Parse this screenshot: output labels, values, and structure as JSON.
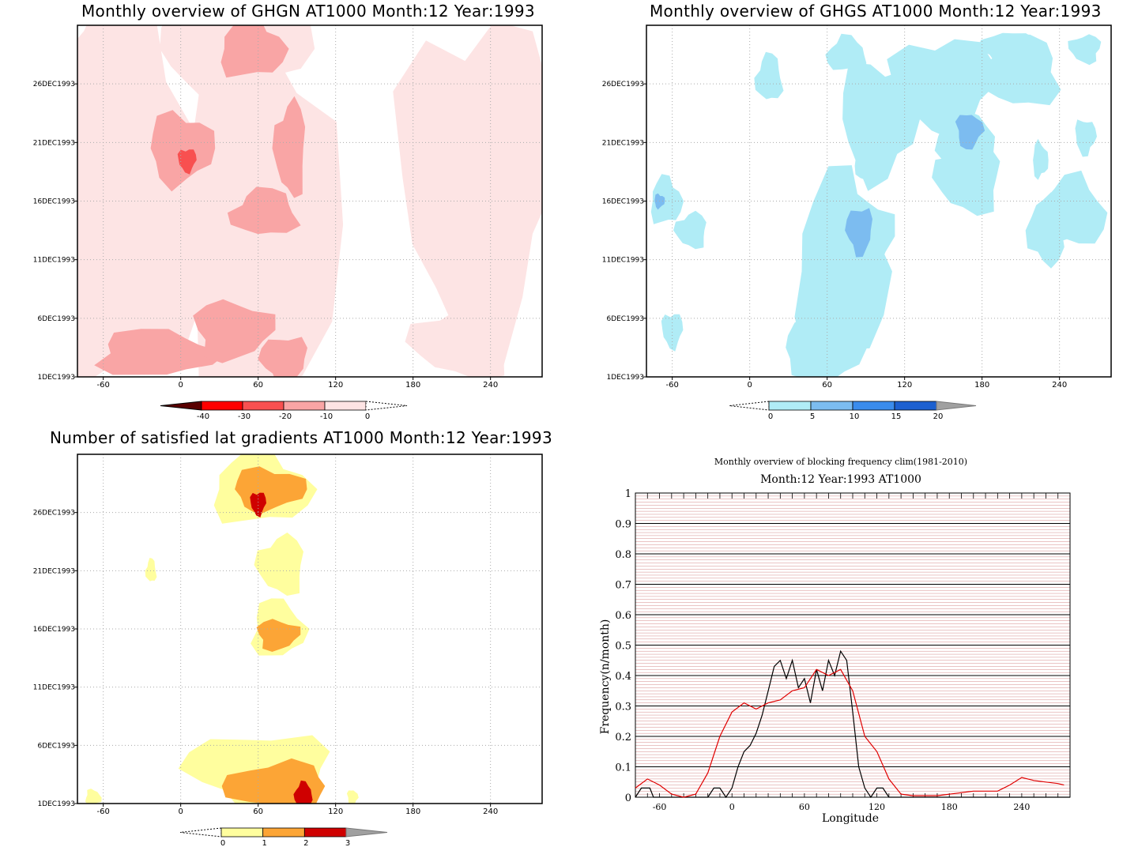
{
  "colors": {
    "reds": [
      "#5a0000",
      "#ff0000",
      "#f85050",
      "#f9a5a5",
      "#fde4e4"
    ],
    "blues": [
      "#b0ecf6",
      "#7cbcf0",
      "#3a8cec",
      "#1c60d0",
      "#a0a0a0"
    ],
    "yellows": [
      "#fffe9e",
      "#fca536",
      "#cf0000",
      "#a0a0a0"
    ],
    "line_black": "#000000",
    "line_red": "#e00000"
  },
  "chart_data": [
    {
      "type": "heatmap",
      "title": "Monthly overview of GHGN AT1000 Month:12 Year:1993",
      "x_ticks": [
        "-60",
        "0",
        "60",
        "120",
        "180",
        "240"
      ],
      "x_tick_values": [
        -60,
        0,
        60,
        120,
        180,
        240
      ],
      "y_ticks": [
        "1DEC1993",
        "6DEC1993",
        "11DEC1993",
        "16DEC1993",
        "21DEC1993",
        "26DEC1993"
      ],
      "y_tick_values": [
        1,
        6,
        11,
        16,
        21,
        26
      ],
      "xlim": [
        -80,
        280
      ],
      "ylim": [
        1,
        31
      ],
      "grid": true,
      "colorbar": {
        "labels": [
          "-40",
          "-30",
          "-20",
          "-10",
          "0"
        ],
        "values": [
          -40,
          -30,
          -20,
          -10,
          0
        ]
      },
      "features": [
        {
          "level": 3,
          "center": [
            55,
            29
          ],
          "radius": [
            25,
            2.5
          ]
        },
        {
          "level": 3,
          "center": [
            0,
            20.5
          ],
          "radius": [
            25,
            3
          ]
        },
        {
          "level": 2,
          "center": [
            5,
            19.5
          ],
          "radius": [
            7,
            1
          ]
        },
        {
          "level": 3,
          "center": [
            85,
            20.5
          ],
          "radius": [
            12,
            4
          ]
        },
        {
          "level": 3,
          "center": [
            65,
            15
          ],
          "radius": [
            25,
            2
          ]
        },
        {
          "level": 3,
          "center": [
            -20,
            3
          ],
          "radius": [
            45,
            2
          ]
        },
        {
          "level": 3,
          "center": [
            40,
            5
          ],
          "radius": [
            30,
            2.5
          ]
        },
        {
          "level": 3,
          "center": [
            80,
            2.5
          ],
          "radius": [
            18,
            2
          ]
        }
      ]
    },
    {
      "type": "heatmap",
      "title": "Monthly overview of GHGS AT1000 Month:12 Year:1993",
      "x_ticks": [
        "-60",
        "0",
        "60",
        "120",
        "180",
        "240"
      ],
      "x_tick_values": [
        -60,
        0,
        60,
        120,
        180,
        240
      ],
      "y_ticks": [
        "1DEC1993",
        "6DEC1993",
        "11DEC1993",
        "16DEC1993",
        "21DEC1993",
        "26DEC1993"
      ],
      "y_tick_values": [
        1,
        6,
        11,
        16,
        21,
        26
      ],
      "xlim": [
        -80,
        280
      ],
      "ylim": [
        1,
        31
      ],
      "grid": true,
      "colorbar": {
        "labels": [
          "0",
          "5",
          "10",
          "15",
          "20"
        ],
        "values": [
          0,
          5,
          10,
          15,
          20
        ]
      },
      "features": [
        {
          "level": 1,
          "center": [
            -65,
            16
          ],
          "radius": [
            12,
            2
          ]
        },
        {
          "level": 2,
          "center": [
            -70,
            16
          ],
          "radius": [
            4,
            0.6
          ]
        },
        {
          "level": 1,
          "center": [
            -60,
            5
          ],
          "radius": [
            8,
            1.5
          ]
        },
        {
          "level": 1,
          "center": [
            -45,
            13.5
          ],
          "radius": [
            12,
            1.5
          ]
        },
        {
          "level": 1,
          "center": [
            15,
            26.5
          ],
          "radius": [
            10,
            2
          ]
        },
        {
          "level": 1,
          "center": [
            60,
            3.5
          ],
          "radius": [
            25,
            3
          ]
        },
        {
          "level": 1,
          "center": [
            88,
            13
          ],
          "radius": [
            22,
            3.5
          ]
        },
        {
          "level": 2,
          "center": [
            85,
            13.5
          ],
          "radius": [
            10,
            2
          ]
        },
        {
          "level": 1,
          "center": [
            90,
            19
          ],
          "radius": [
            8,
            1.5
          ]
        },
        {
          "level": 1,
          "center": [
            75,
            28.5
          ],
          "radius": [
            15,
            1.5
          ]
        },
        {
          "level": 1,
          "center": [
            165,
            21.5
          ],
          "radius": [
            22,
            2.5
          ]
        },
        {
          "level": 2,
          "center": [
            170,
            22
          ],
          "radius": [
            10,
            1.5
          ]
        },
        {
          "level": 1,
          "center": [
            200,
            29
          ],
          "radius": [
            20,
            1.5
          ]
        },
        {
          "level": 1,
          "center": [
            230,
            13.5
          ],
          "radius": [
            14,
            3
          ]
        },
        {
          "level": 1,
          "center": [
            250,
            15
          ],
          "radius": [
            25,
            3
          ]
        },
        {
          "level": 1,
          "center": [
            225,
            19.5
          ],
          "radius": [
            6,
            1.5
          ]
        },
        {
          "level": 1,
          "center": [
            260,
            21.5
          ],
          "radius": [
            8,
            1.5
          ]
        },
        {
          "level": 1,
          "center": [
            260,
            29
          ],
          "radius": [
            12,
            1.2
          ]
        }
      ]
    },
    {
      "type": "heatmap",
      "title": "Number of satisfied lat gradients AT1000 Month:12 Year:1993",
      "x_ticks": [
        "-60",
        "0",
        "60",
        "120",
        "180",
        "240"
      ],
      "x_tick_values": [
        -60,
        0,
        60,
        120,
        180,
        240
      ],
      "y_ticks": [
        "1DEC1993",
        "6DEC1993",
        "11DEC1993",
        "16DEC1993",
        "21DEC1993",
        "26DEC1993"
      ],
      "y_tick_values": [
        1,
        6,
        11,
        16,
        21,
        26
      ],
      "xlim": [
        -80,
        280
      ],
      "ylim": [
        1,
        31
      ],
      "grid": true,
      "colorbar": {
        "labels": [
          "0",
          "1",
          "2",
          "3"
        ],
        "values": [
          0,
          1,
          2,
          3
        ]
      },
      "features": [
        {
          "level": 0,
          "center": [
            62,
            28
          ],
          "radius": [
            38,
            3
          ]
        },
        {
          "level": 1,
          "center": [
            68,
            28
          ],
          "radius": [
            28,
            1.8
          ]
        },
        {
          "level": 2,
          "center": [
            60,
            26.8
          ],
          "radius": [
            6,
            1
          ]
        },
        {
          "level": 0,
          "center": [
            78,
            21.5
          ],
          "radius": [
            18,
            2.5
          ]
        },
        {
          "level": 0,
          "center": [
            -23,
            21
          ],
          "radius": [
            4,
            1
          ]
        },
        {
          "level": 0,
          "center": [
            75,
            16
          ],
          "radius": [
            20,
            2.5
          ]
        },
        {
          "level": 1,
          "center": [
            75,
            15.5
          ],
          "radius": [
            16,
            1.3
          ]
        },
        {
          "level": 0,
          "center": [
            60,
            4
          ],
          "radius": [
            55,
            3
          ]
        },
        {
          "level": 1,
          "center": [
            75,
            2.5
          ],
          "radius": [
            40,
            2
          ]
        },
        {
          "level": 2,
          "center": [
            95,
            1.8
          ],
          "radius": [
            7,
            1
          ]
        },
        {
          "level": 0,
          "center": [
            -68,
            1.5
          ],
          "radius": [
            6,
            0.7
          ]
        },
        {
          "level": 0,
          "center": [
            133,
            1.5
          ],
          "radius": [
            4,
            0.7
          ]
        }
      ]
    },
    {
      "type": "line",
      "title": "Monthly overview of blocking frequency clim(1981-2010)",
      "subtitle": "Month:12 Year:1993  AT1000",
      "xlabel": "Longitude",
      "ylabel": "Frequency(n/month)",
      "xlim": [
        -80,
        280
      ],
      "ylim": [
        0,
        1
      ],
      "x_ticks": [
        "-60",
        "0",
        "60",
        "120",
        "180",
        "240"
      ],
      "x_tick_values": [
        -60,
        0,
        60,
        120,
        180,
        240
      ],
      "y_ticks": [
        "0",
        "0.1",
        "0.2",
        "0.3",
        "0.4",
        "0.5",
        "0.6",
        "0.7",
        "0.8",
        "0.9",
        "1"
      ],
      "y_tick_values": [
        0,
        0.1,
        0.2,
        0.3,
        0.4,
        0.5,
        0.6,
        0.7,
        0.8,
        0.9,
        1
      ],
      "grid": true,
      "series": [
        {
          "color": "black",
          "x": [
            -80,
            -75,
            -68,
            -65,
            -20,
            -15,
            -10,
            -5,
            0,
            5,
            10,
            15,
            20,
            25,
            30,
            35,
            40,
            45,
            50,
            55,
            60,
            65,
            70,
            75,
            80,
            85,
            90,
            95,
            100,
            105,
            110,
            115,
            120,
            125,
            130,
            140,
            280
          ],
          "y": [
            0,
            0.03,
            0.03,
            0,
            0,
            0.03,
            0.03,
            0,
            0.03,
            0.1,
            0.15,
            0.17,
            0.21,
            0.27,
            0.35,
            0.43,
            0.45,
            0.39,
            0.45,
            0.36,
            0.39,
            0.31,
            0.42,
            0.35,
            0.45,
            0.4,
            0.48,
            0.45,
            0.28,
            0.1,
            0.03,
            0,
            0.03,
            0.03,
            0,
            0,
            0
          ]
        },
        {
          "color": "red",
          "x": [
            -80,
            -70,
            -60,
            -50,
            -40,
            -30,
            -20,
            -10,
            0,
            10,
            20,
            30,
            40,
            50,
            60,
            70,
            80,
            90,
            100,
            110,
            120,
            130,
            140,
            150,
            170,
            200,
            220,
            230,
            240,
            250,
            260,
            270,
            275
          ],
          "y": [
            0.03,
            0.06,
            0.04,
            0.01,
            0,
            0.01,
            0.08,
            0.2,
            0.28,
            0.31,
            0.29,
            0.31,
            0.32,
            0.35,
            0.36,
            0.42,
            0.4,
            0.42,
            0.35,
            0.2,
            0.15,
            0.06,
            0.01,
            0.005,
            0.005,
            0.02,
            0.02,
            0.04,
            0.065,
            0.055,
            0.05,
            0.045,
            0.04
          ]
        }
      ]
    }
  ]
}
